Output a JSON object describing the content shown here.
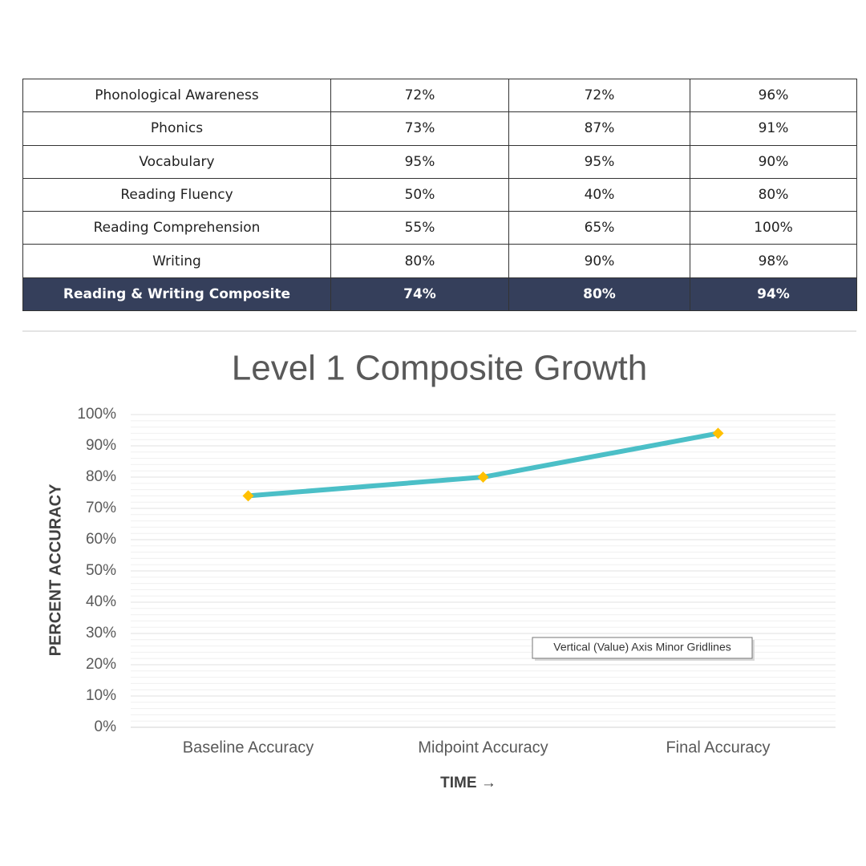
{
  "table": {
    "rows": [
      [
        "Phonological Awareness",
        "72%",
        "72%",
        "96%"
      ],
      [
        "Phonics",
        "73%",
        "87%",
        "91%"
      ],
      [
        "Vocabulary",
        "95%",
        "95%",
        "90%"
      ],
      [
        "Reading Fluency",
        "50%",
        "40%",
        "80%"
      ],
      [
        "Reading Comprehension",
        "55%",
        "65%",
        "100%"
      ],
      [
        "Writing",
        "80%",
        "90%",
        "98%"
      ]
    ],
    "total": [
      "Reading & Writing Composite",
      "74%",
      "80%",
      "94%"
    ]
  },
  "chart_data": {
    "type": "line",
    "title": "Level 1 Composite Growth",
    "x_label": "TIME →",
    "y_label": "PERCENT ACCURACY",
    "categories": [
      "Baseline Accuracy",
      "Midpoint Accuracy",
      "Final Accuracy"
    ],
    "series": [
      {
        "name": "Composite",
        "color": "#4bbfc7",
        "marker_color": "#ffc000",
        "values": [
          74,
          80,
          94
        ]
      }
    ],
    "ylim": [
      0,
      100
    ],
    "yticks": [
      {
        "value": 0,
        "label": "0%"
      },
      {
        "value": 10,
        "label": "10%"
      },
      {
        "value": 20,
        "label": "20%"
      },
      {
        "value": 30,
        "label": "30%"
      },
      {
        "value": 40,
        "label": "40%"
      },
      {
        "value": 50,
        "label": "50%"
      },
      {
        "value": 60,
        "label": "60%"
      },
      {
        "value": 70,
        "label": "70%"
      },
      {
        "value": 80,
        "label": "80%"
      },
      {
        "value": 90,
        "label": "90%"
      },
      {
        "value": 100,
        "label": "100%"
      }
    ],
    "grid": true,
    "minor_step": 2,
    "tooltip": "Vertical (Value) Axis Minor Gridlines"
  }
}
